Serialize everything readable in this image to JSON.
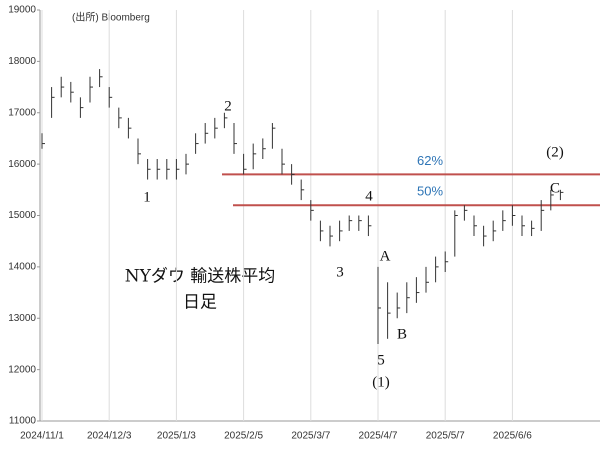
{
  "chart_data": {
    "type": "hlc",
    "source": "(出所) Bloomberg",
    "title": "NYダウ 輸送株平均",
    "subtitle": "日足",
    "color": "#333333",
    "categories": [
      "2024/11/1",
      null,
      null,
      null,
      null,
      null,
      null,
      "2024/12/3",
      null,
      null,
      null,
      null,
      null,
      null,
      "2025/1/3",
      null,
      null,
      null,
      null,
      null,
      null,
      "2025/2/5",
      null,
      null,
      null,
      null,
      null,
      null,
      "2025/3/7",
      null,
      null,
      null,
      null,
      null,
      null,
      "2025/4/7",
      null,
      null,
      null,
      null,
      null,
      null,
      "2025/5/7",
      null,
      null,
      null,
      null,
      null,
      null,
      "2025/6/6",
      null,
      null,
      null,
      null,
      null
    ],
    "high": [
      16600,
      17500,
      17700,
      17600,
      17300,
      17700,
      17850,
      17500,
      17100,
      16900,
      16500,
      16100,
      16100,
      16100,
      16100,
      16200,
      16600,
      16800,
      16900,
      17000,
      16800,
      16200,
      16400,
      16500,
      16800,
      16300,
      16000,
      15700,
      15300,
      14900,
      14800,
      14900,
      15000,
      15000,
      15000,
      14000,
      13700,
      13500,
      13700,
      13800,
      14000,
      14200,
      14300,
      15100,
      15200,
      15000,
      14800,
      14900,
      15100,
      15200,
      15000,
      14900,
      15300,
      15500,
      15500
    ],
    "low": [
      16300,
      16900,
      17300,
      17200,
      16900,
      17200,
      17500,
      17100,
      16700,
      16500,
      16000,
      15700,
      15700,
      15700,
      15700,
      15800,
      16200,
      16400,
      16500,
      16700,
      16200,
      15800,
      15900,
      16100,
      16300,
      15800,
      15600,
      15300,
      14900,
      14500,
      14400,
      14500,
      14700,
      14700,
      14600,
      12500,
      12600,
      13000,
      13100,
      13300,
      13500,
      13700,
      13900,
      14200,
      14900,
      14600,
      14400,
      14500,
      14700,
      14800,
      14600,
      14600,
      14700,
      15100,
      15300
    ],
    "close": [
      16400,
      17300,
      17500,
      17400,
      17100,
      17500,
      17700,
      17300,
      16900,
      16700,
      16200,
      15900,
      15900,
      15900,
      15900,
      16000,
      16400,
      16600,
      16700,
      16900,
      16400,
      15900,
      16200,
      16300,
      16700,
      16000,
      15800,
      15500,
      15100,
      14700,
      14600,
      14700,
      14900,
      14900,
      14800,
      13200,
      13100,
      13200,
      13400,
      13500,
      13700,
      14000,
      14100,
      15000,
      15100,
      14800,
      14600,
      14700,
      14900,
      15000,
      14800,
      14750,
      15100,
      15400,
      15450
    ],
    "ylim": [
      11000,
      19000
    ],
    "yticks": [
      11000,
      12000,
      13000,
      14000,
      15000,
      16000,
      17000,
      18000,
      19000
    ],
    "levels": [
      {
        "label": "62%",
        "value": 15800,
        "color": "#c0504d"
      },
      {
        "label": "50%",
        "value": 15200,
        "color": "#c0504d"
      }
    ],
    "annotations": [
      "1",
      "2",
      "3",
      "4",
      "5",
      "(1)",
      "A",
      "B",
      "C",
      "(2)"
    ]
  }
}
